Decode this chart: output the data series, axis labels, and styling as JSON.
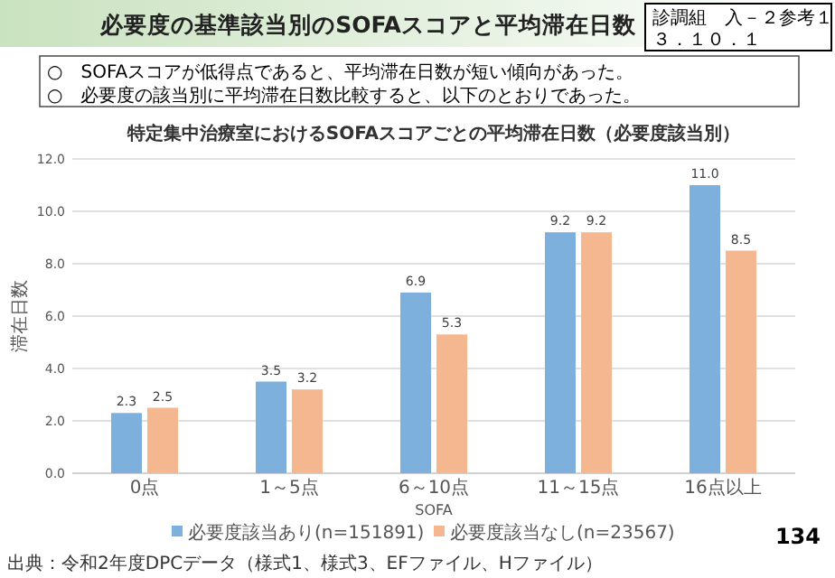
{
  "chart_data": {
    "type": "bar",
    "title": "必要度の基準該当別のSOFAスコアと平均滞在日数",
    "subtitle": "特定集中治療室におけるSOFAスコアごとの平均滞在日数（必要度該当別）",
    "xlabel": "SOFA",
    "ylabel": "滞在日数",
    "categories": [
      "0点",
      "1～5点",
      "6～10点",
      "11～15点",
      "16点以上"
    ],
    "series": [
      {
        "name": "必要度該当あり(n=151891)",
        "color": "#7eb0de",
        "values": [
          2.3,
          3.5,
          6.9,
          9.2,
          11.0
        ],
        "value_labels": [
          "2.3",
          "3.5",
          "6.9",
          "9.2",
          "11.0"
        ]
      },
      {
        "name": "必要度該当なし(n=23567)",
        "color": "#f5b78f",
        "values": [
          2.5,
          3.2,
          5.3,
          9.2,
          8.5
        ],
        "value_labels": [
          "2.5",
          "3.2",
          "5.3",
          "9.2",
          "8.5"
        ]
      }
    ],
    "ylim": [
      0,
      12
    ],
    "yticks": [
      {
        "value": 0,
        "label": "0.0"
      },
      {
        "value": 2,
        "label": "2.0"
      },
      {
        "value": 4,
        "label": "4.0"
      },
      {
        "value": 6,
        "label": "6.0"
      },
      {
        "value": 8,
        "label": "8.0"
      },
      {
        "value": 10,
        "label": "10.0"
      },
      {
        "value": 12,
        "label": "12.0"
      }
    ],
    "grid": "y",
    "legend": "bottom",
    "annotations": [
      "○　SOFAスコアが低得点であると、平均滞在日数が短い傾向があった。",
      "○　必要度の該当別に平均滞在日数比較すると、以下のとおりであった。",
      "診調組　入－２参考１",
      "３．１０．１",
      "134",
      "出典：令和2年度DPCデータ（様式1、様式3、EFファイル、Hファイル）"
    ]
  }
}
